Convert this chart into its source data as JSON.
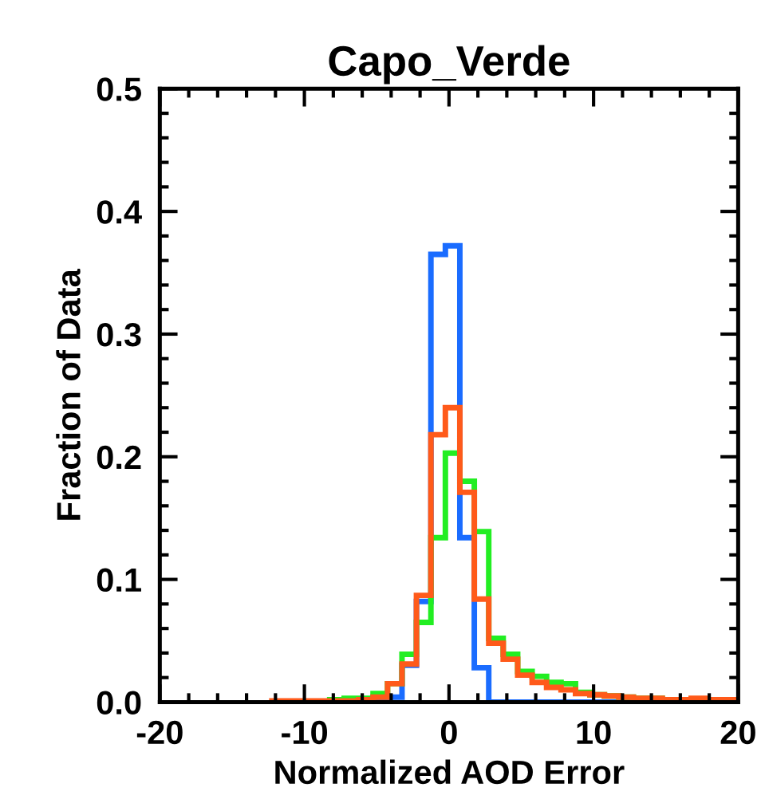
{
  "chart_data": {
    "type": "histogram",
    "title": "Capo_Verde",
    "xlabel": "Normalized AOD Error",
    "ylabel": "Fraction of Data",
    "bins": [
      -12.25,
      -11.25,
      -10.25,
      -9.25,
      -8.25,
      -7.25,
      -6.25,
      -5.25,
      -4.25,
      -3.25,
      -2.25,
      -1.25,
      -0.25,
      0.75,
      1.75,
      2.75,
      3.75,
      4.75,
      5.75,
      6.75,
      7.75,
      8.75,
      9.75,
      10.75,
      11.75,
      12.75,
      13.75,
      14.75,
      15.75,
      16.75,
      17.75,
      18.75,
      19.75
    ],
    "series": [
      {
        "color": "#1a6cff",
        "values": [
          0,
          0,
          0,
          0,
          0,
          0,
          0,
          0.002,
          0.004,
          0.03,
          0.082,
          0.365,
          0.372,
          0.134,
          0.028,
          0,
          0,
          0,
          0,
          0,
          0,
          0,
          0,
          0,
          0,
          0,
          0,
          0,
          0,
          0,
          0,
          0
        ]
      },
      {
        "color": "#22ee22",
        "values": [
          0,
          0,
          0,
          0,
          0.002,
          0.003,
          0.003,
          0.007,
          0.015,
          0.039,
          0.065,
          0.134,
          0.203,
          0.18,
          0.139,
          0.052,
          0.039,
          0.025,
          0.021,
          0.016,
          0.015,
          0.008,
          0.006,
          0.005,
          0.004,
          0.003,
          0.003,
          0.002,
          0.002,
          0.002,
          0.002,
          0.002
        ]
      },
      {
        "color": "#ff5a1a",
        "values": [
          0.001,
          0.001,
          0.001,
          0.001,
          0.001,
          0.001,
          0.002,
          0.004,
          0.015,
          0.031,
          0.087,
          0.218,
          0.24,
          0.171,
          0.084,
          0.048,
          0.035,
          0.022,
          0.016,
          0.012,
          0.01,
          0.007,
          0.006,
          0.005,
          0.004,
          0.003,
          0.003,
          0.002,
          0.002,
          0.003,
          0.002,
          0.002
        ]
      }
    ],
    "xlim": [
      -20,
      20
    ],
    "xticks": [
      -20,
      -10,
      0,
      10,
      20
    ],
    "ylim": [
      0,
      0.5
    ],
    "yticks": [
      {
        "value": 0,
        "label": "0.0"
      },
      0.1,
      0.2,
      0.3,
      0.4,
      0.5
    ],
    "grid": false,
    "legend": false
  }
}
